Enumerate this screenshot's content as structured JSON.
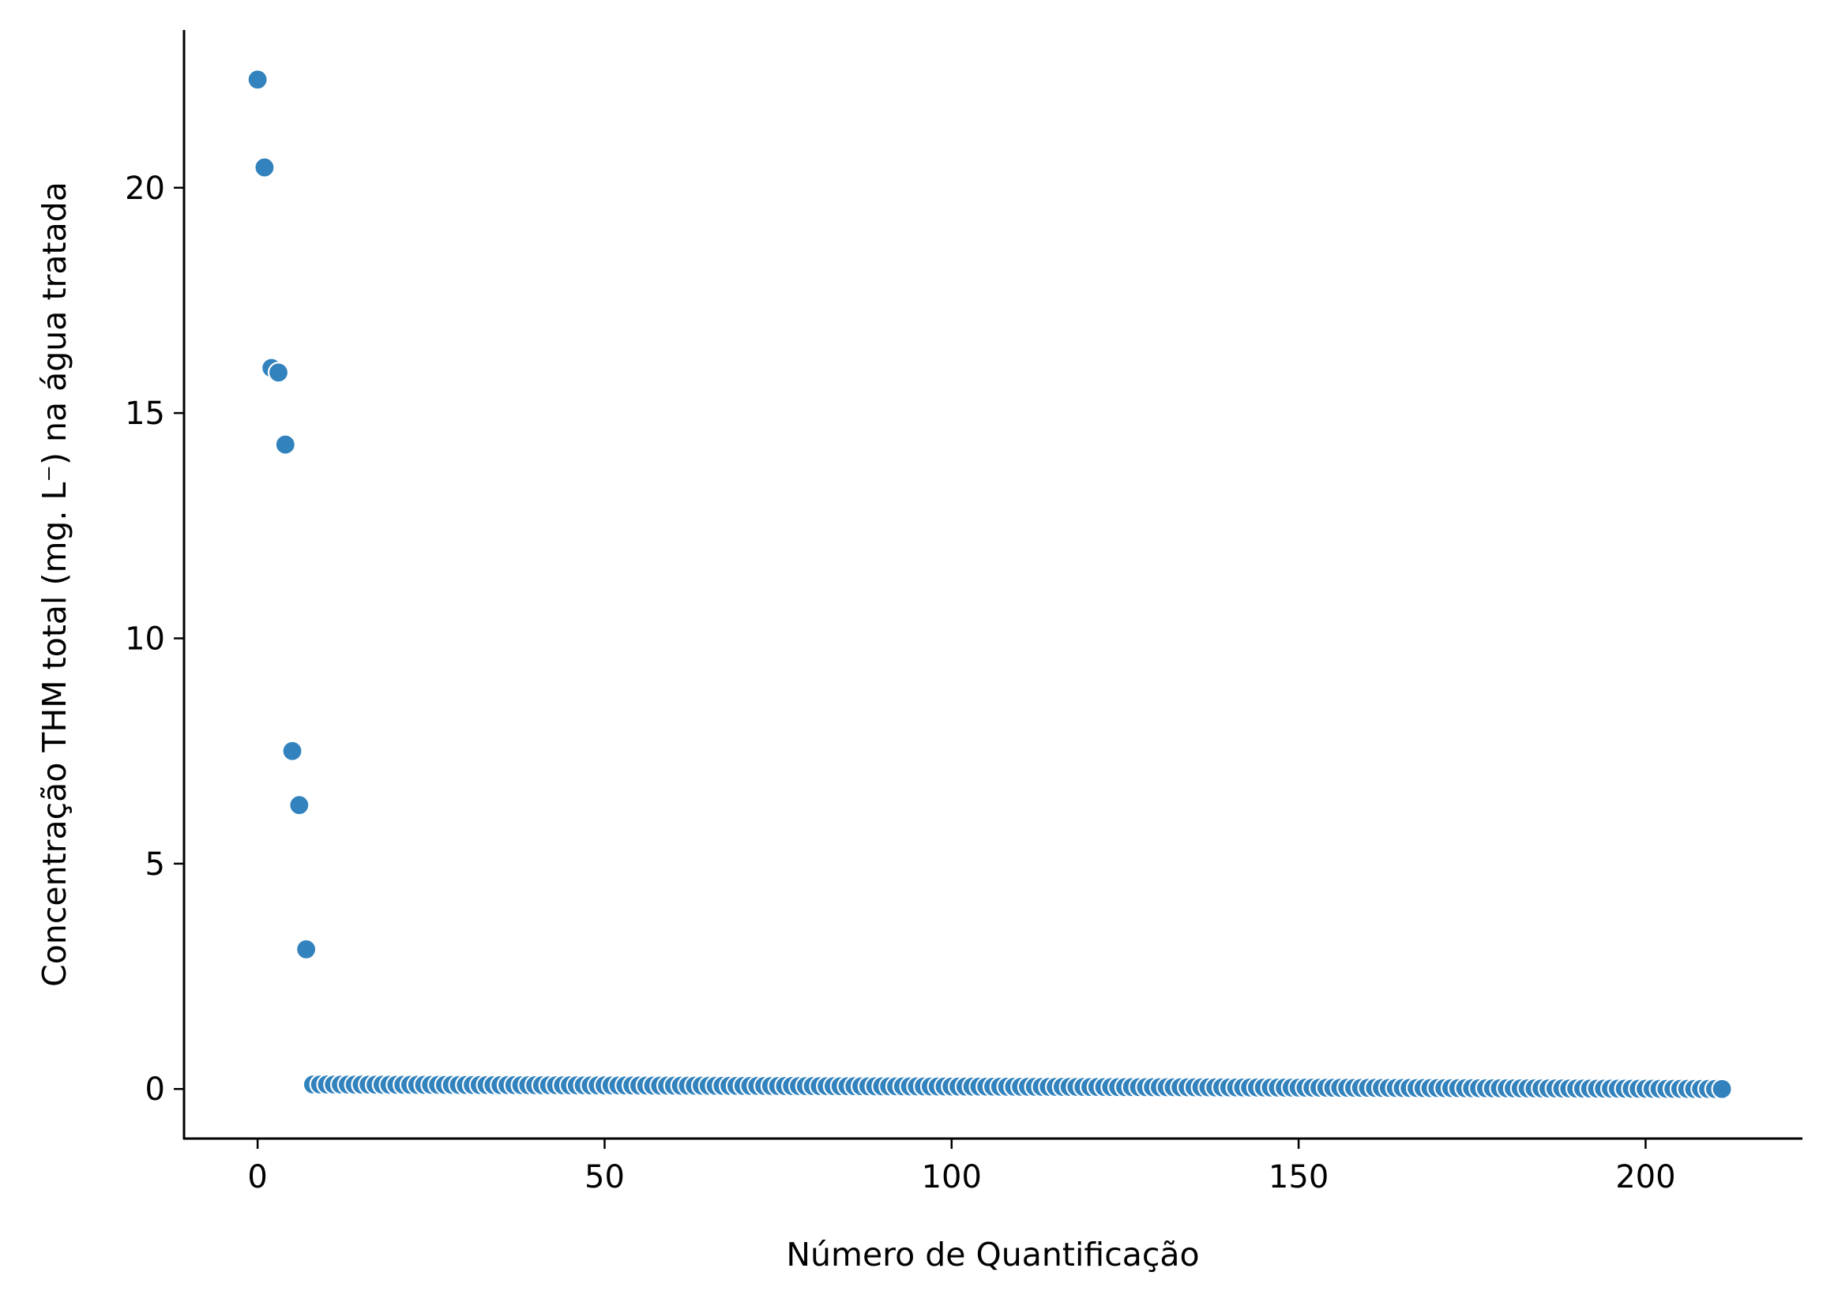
{
  "chart_data": {
    "type": "scatter",
    "title": "",
    "xlabel": "Número de Quantificação",
    "ylabel": "Concentração THM total (mg. L⁻) na água tratada",
    "xlim": [
      -10.6,
      222.6
    ],
    "ylim": [
      -1.1,
      23.5
    ],
    "xticks": [
      0,
      50,
      100,
      150,
      200
    ],
    "yticks": [
      0,
      5,
      10,
      15,
      20
    ],
    "grid": false,
    "legend": "none",
    "marker_color": "#3182bd",
    "marker_edge_color": "#ffffff",
    "series": [
      {
        "name": "THM total",
        "points": [
          [
            0,
            22.4
          ],
          [
            1,
            20.45
          ],
          [
            2,
            16.0
          ],
          [
            3,
            15.9
          ],
          [
            4,
            14.3
          ],
          [
            5,
            7.5
          ],
          [
            6,
            6.3
          ],
          [
            7,
            3.1
          ]
        ],
        "tail": {
          "x_start": 8,
          "x_end": 211,
          "y_start": 0.1,
          "y_end": 0.0
        }
      }
    ]
  }
}
